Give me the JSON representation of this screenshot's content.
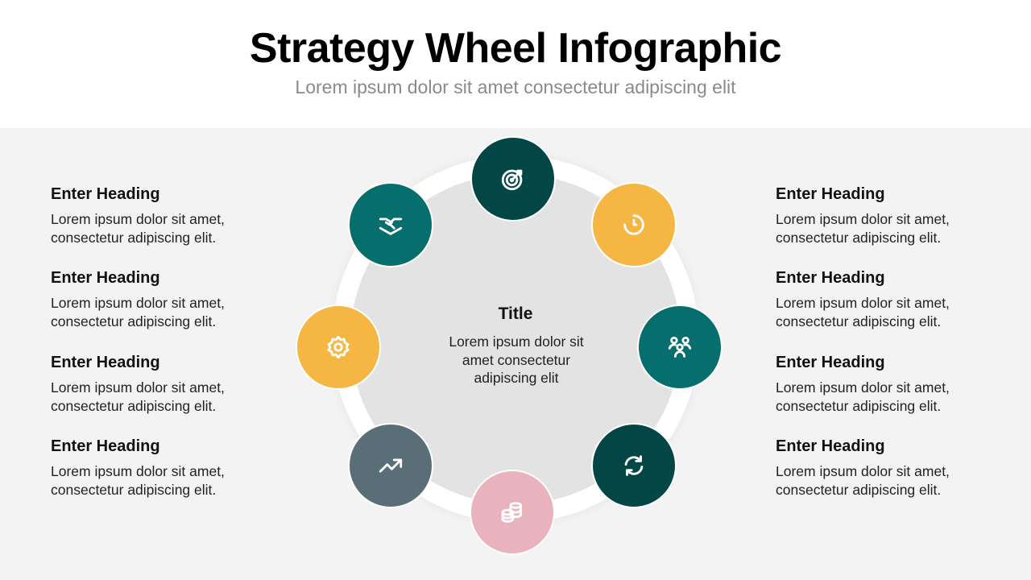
{
  "header": {
    "title": "Strategy Wheel Infographic",
    "subtitle": "Lorem ipsum dolor sit amet consectetur adipiscing elit"
  },
  "center": {
    "title": "Title",
    "text": "Lorem ipsum dolor sit amet consectetur adipiscing elit"
  },
  "left_items": [
    {
      "heading": "Enter Heading",
      "text": "Lorem ipsum dolor sit amet, consectetur adipiscing elit."
    },
    {
      "heading": "Enter Heading",
      "text": "Lorem ipsum dolor sit amet, consectetur adipiscing elit."
    },
    {
      "heading": "Enter Heading",
      "text": "Lorem ipsum dolor sit amet, consectetur adipiscing elit."
    },
    {
      "heading": "Enter Heading",
      "text": "Lorem ipsum dolor sit amet, consectetur adipiscing elit."
    }
  ],
  "right_items": [
    {
      "heading": "Enter Heading",
      "text": "Lorem ipsum dolor sit amet, consectetur adipiscing elit."
    },
    {
      "heading": "Enter Heading",
      "text": "Lorem ipsum dolor sit amet, consectetur adipiscing elit."
    },
    {
      "heading": "Enter Heading",
      "text": "Lorem ipsum dolor sit amet, consectetur adipiscing elit."
    },
    {
      "heading": "Enter Heading",
      "text": "Lorem ipsum dolor sit amet, consectetur adipiscing elit."
    }
  ],
  "nodes": [
    {
      "icon": "target-icon",
      "color": "#034646"
    },
    {
      "icon": "timer-icon",
      "color": "#f6b643"
    },
    {
      "icon": "team-icon",
      "color": "#066e6c"
    },
    {
      "icon": "refresh-icon",
      "color": "#034646"
    },
    {
      "icon": "coins-icon",
      "color": "#e8b3bd"
    },
    {
      "icon": "trend-up-icon",
      "color": "#5a6e77"
    },
    {
      "icon": "gear-icon",
      "color": "#f6b643"
    },
    {
      "icon": "handshake-icon",
      "color": "#066e6c"
    }
  ]
}
